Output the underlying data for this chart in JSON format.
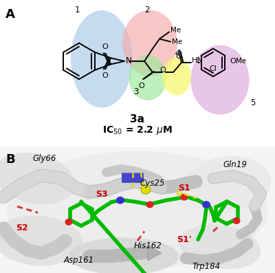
{
  "panel_A_label": "A",
  "panel_B_label": "B",
  "compound_name": "3a",
  "ic50_text": "IC$_{50}$ = 2.2 μM",
  "bg_color": "#ffffff",
  "ellipse_colors": {
    "ring1": "#a8c8e8",
    "ring2": "#f4aaaa",
    "ring3": "#98e898",
    "ring4": "#f8f870",
    "ring5": "#dda8dd"
  },
  "panel_b_bg": "#f0f0f0",
  "protein_light": "#e8e8e8",
  "protein_mid": "#d0d0d0",
  "protein_dark": "#b0b0b0",
  "ligand_green": "#00bb00",
  "hbond_color": "#dddd00",
  "red_dash_color": "#cc3333",
  "blue_residue": "#3333bb",
  "yellow_sulfur": "#eeee00"
}
